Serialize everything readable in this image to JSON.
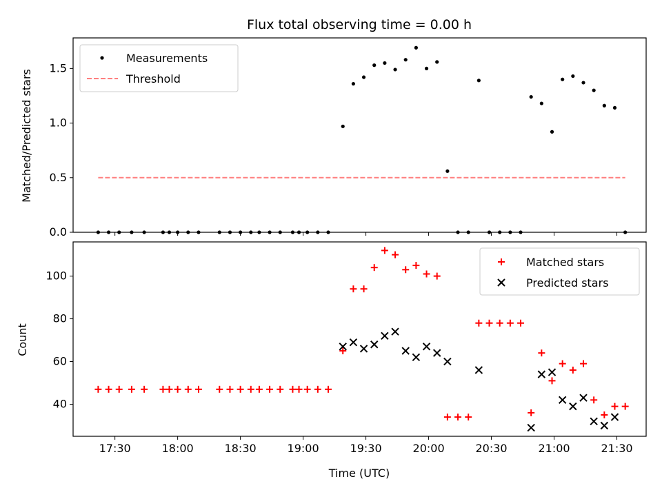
{
  "chart_data": {
    "title": "Flux total observing time = 0.00 h",
    "xlabel": "Time (UTC)",
    "x_ticks": [
      "17:30",
      "18:00",
      "18:30",
      "19:00",
      "19:30",
      "20:00",
      "20:30",
      "21:00",
      "21:30"
    ],
    "xlim": [
      "17:10",
      "21:44"
    ],
    "panels": [
      {
        "type": "scatter",
        "ylabel": "Matched/Predicted stars",
        "ylim": [
          0,
          1.78
        ],
        "y_ticks": [
          "0.0",
          "0.5",
          "1.0",
          "1.5"
        ],
        "legend": {
          "position": "top-left",
          "entries": [
            "Measurements",
            "Threshold"
          ]
        },
        "series": [
          {
            "name": "Measurements",
            "marker": "dot",
            "color": "#000000",
            "points": [
              [
                "17:22",
                0
              ],
              [
                "17:27",
                0
              ],
              [
                "17:32",
                0
              ],
              [
                "17:38",
                0
              ],
              [
                "17:44",
                0
              ],
              [
                "17:53",
                0
              ],
              [
                "17:56",
                0
              ],
              [
                "18:00",
                0
              ],
              [
                "18:05",
                0
              ],
              [
                "18:10",
                0
              ],
              [
                "18:20",
                0
              ],
              [
                "18:25",
                0
              ],
              [
                "18:30",
                0
              ],
              [
                "18:35",
                0
              ],
              [
                "18:39",
                0
              ],
              [
                "18:44",
                0
              ],
              [
                "18:49",
                0
              ],
              [
                "18:55",
                0
              ],
              [
                "18:58",
                0
              ],
              [
                "19:02",
                0
              ],
              [
                "19:07",
                0
              ],
              [
                "19:12",
                0
              ],
              [
                "19:19",
                0.97
              ],
              [
                "19:24",
                1.36
              ],
              [
                "19:29",
                1.42
              ],
              [
                "19:34",
                1.53
              ],
              [
                "19:39",
                1.55
              ],
              [
                "19:44",
                1.49
              ],
              [
                "19:49",
                1.58
              ],
              [
                "19:54",
                1.69
              ],
              [
                "19:59",
                1.5
              ],
              [
                "20:04",
                1.56
              ],
              [
                "20:09",
                0.56
              ],
              [
                "20:14",
                0
              ],
              [
                "20:19",
                0
              ],
              [
                "20:24",
                1.39
              ],
              [
                "20:29",
                0
              ],
              [
                "20:34",
                0
              ],
              [
                "20:39",
                0
              ],
              [
                "20:44",
                0
              ],
              [
                "20:49",
                1.24
              ],
              [
                "20:54",
                1.18
              ],
              [
                "20:59",
                0.92
              ],
              [
                "21:04",
                1.4
              ],
              [
                "21:09",
                1.43
              ],
              [
                "21:14",
                1.37
              ],
              [
                "21:19",
                1.3
              ],
              [
                "21:24",
                1.16
              ],
              [
                "21:29",
                1.14
              ],
              [
                "21:34",
                0
              ]
            ]
          },
          {
            "name": "Threshold",
            "style": "dashed",
            "color": "#ff7f7f",
            "points": [
              [
                "17:22",
                0.5
              ],
              [
                "21:34",
                0.5
              ]
            ]
          }
        ]
      },
      {
        "type": "scatter",
        "ylabel": "Count",
        "ylim": [
          25,
          116
        ],
        "y_ticks": [
          "40",
          "60",
          "80",
          "100"
        ],
        "legend": {
          "position": "top-right",
          "entries": [
            "Matched stars",
            "Predicted stars"
          ]
        },
        "series": [
          {
            "name": "Matched stars",
            "marker": "plus",
            "color": "#ff0000",
            "points": [
              [
                "17:22",
                47
              ],
              [
                "17:27",
                47
              ],
              [
                "17:32",
                47
              ],
              [
                "17:38",
                47
              ],
              [
                "17:44",
                47
              ],
              [
                "17:53",
                47
              ],
              [
                "17:56",
                47
              ],
              [
                "18:00",
                47
              ],
              [
                "18:05",
                47
              ],
              [
                "18:10",
                47
              ],
              [
                "18:20",
                47
              ],
              [
                "18:25",
                47
              ],
              [
                "18:30",
                47
              ],
              [
                "18:35",
                47
              ],
              [
                "18:39",
                47
              ],
              [
                "18:44",
                47
              ],
              [
                "18:49",
                47
              ],
              [
                "18:55",
                47
              ],
              [
                "18:58",
                47
              ],
              [
                "19:02",
                47
              ],
              [
                "19:07",
                47
              ],
              [
                "19:12",
                47
              ],
              [
                "19:19",
                65
              ],
              [
                "19:24",
                94
              ],
              [
                "19:29",
                94
              ],
              [
                "19:34",
                104
              ],
              [
                "19:39",
                112
              ],
              [
                "19:44",
                110
              ],
              [
                "19:49",
                103
              ],
              [
                "19:54",
                105
              ],
              [
                "19:59",
                101
              ],
              [
                "20:04",
                100
              ],
              [
                "20:09",
                34
              ],
              [
                "20:14",
                34
              ],
              [
                "20:19",
                34
              ],
              [
                "20:24",
                78
              ],
              [
                "20:29",
                78
              ],
              [
                "20:34",
                78
              ],
              [
                "20:39",
                78
              ],
              [
                "20:44",
                78
              ],
              [
                "20:49",
                36
              ],
              [
                "20:54",
                64
              ],
              [
                "20:59",
                51
              ],
              [
                "21:04",
                59
              ],
              [
                "21:09",
                56
              ],
              [
                "21:14",
                59
              ],
              [
                "21:19",
                42
              ],
              [
                "21:24",
                35
              ],
              [
                "21:29",
                39
              ],
              [
                "21:34",
                39
              ]
            ]
          },
          {
            "name": "Predicted stars",
            "marker": "x",
            "color": "#000000",
            "points": [
              [
                "19:19",
                67
              ],
              [
                "19:24",
                69
              ],
              [
                "19:29",
                66
              ],
              [
                "19:34",
                68
              ],
              [
                "19:39",
                72
              ],
              [
                "19:44",
                74
              ],
              [
                "19:49",
                65
              ],
              [
                "19:54",
                62
              ],
              [
                "19:59",
                67
              ],
              [
                "20:04",
                64
              ],
              [
                "20:09",
                60
              ],
              [
                "20:24",
                56
              ],
              [
                "20:49",
                29
              ],
              [
                "20:54",
                54
              ],
              [
                "20:59",
                55
              ],
              [
                "21:04",
                42
              ],
              [
                "21:09",
                39
              ],
              [
                "21:14",
                43
              ],
              [
                "21:19",
                32
              ],
              [
                "21:24",
                30
              ],
              [
                "21:29",
                34
              ]
            ]
          }
        ]
      }
    ]
  }
}
